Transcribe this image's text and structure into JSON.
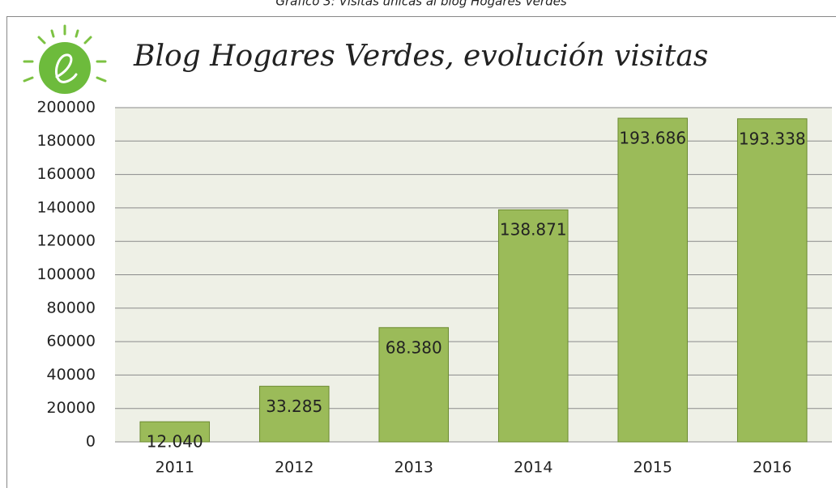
{
  "caption": "Gráfico 3: Visitas únicas al blog Hogares Verdes",
  "chart_data": {
    "type": "bar",
    "title": "Blog Hogares Verdes, evolución visitas",
    "categories": [
      "2011",
      "2012",
      "2013",
      "2014",
      "2015",
      "2016"
    ],
    "values": [
      12040,
      33285,
      68380,
      138871,
      193686,
      193338
    ],
    "value_labels": [
      "12.040",
      "33.285",
      "68.380",
      "138.871",
      "193.686",
      "193.338"
    ],
    "color": "#9bbb59",
    "ylim": [
      0,
      200000
    ],
    "yticks": [
      0,
      20000,
      40000,
      60000,
      80000,
      100000,
      120000,
      140000,
      160000,
      180000,
      200000
    ],
    "grid": true
  }
}
